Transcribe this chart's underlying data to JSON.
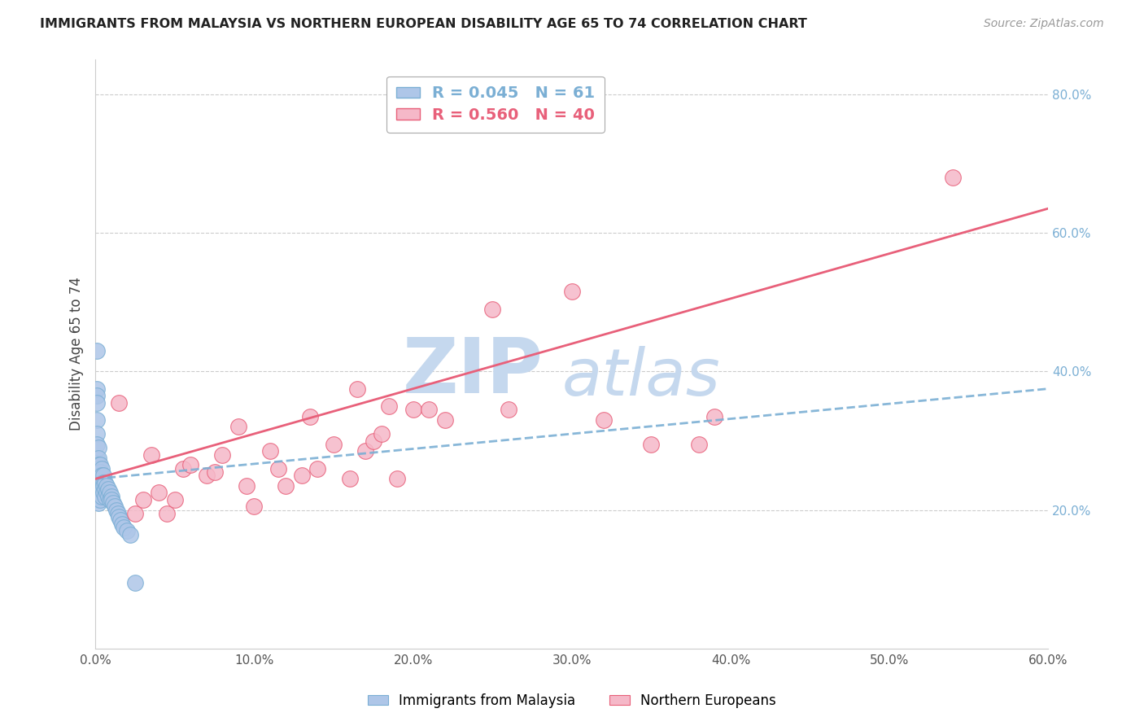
{
  "title": "IMMIGRANTS FROM MALAYSIA VS NORTHERN EUROPEAN DISABILITY AGE 65 TO 74 CORRELATION CHART",
  "source": "Source: ZipAtlas.com",
  "ylabel": "Disability Age 65 to 74",
  "legend_label_1": "Immigrants from Malaysia",
  "legend_label_2": "Northern Europeans",
  "R1": 0.045,
  "N1": 61,
  "R2": 0.56,
  "N2": 40,
  "color1": "#aec6e8",
  "color2": "#f5b8c8",
  "trendline1_color": "#7bafd4",
  "trendline2_color": "#e8607a",
  "xlim": [
    0,
    0.6
  ],
  "ylim": [
    0,
    0.85
  ],
  "x_ticks": [
    0.0,
    0.1,
    0.2,
    0.3,
    0.4,
    0.5,
    0.6
  ],
  "x_tick_labels": [
    "0.0%",
    "10.0%",
    "20.0%",
    "30.0%",
    "40.0%",
    "50.0%",
    "60.0%"
  ],
  "y_ticks_right": [
    0.2,
    0.4,
    0.6,
    0.8
  ],
  "y_tick_labels_right": [
    "20.0%",
    "40.0%",
    "60.0%",
    "80.0%"
  ],
  "background_color": "#ffffff",
  "grid_color": "#cccccc",
  "watermark_zip": "ZIP",
  "watermark_atlas": "atlas",
  "watermark_color": "#c5d8ee",
  "trendline1_x0": 0.0,
  "trendline1_x1": 0.6,
  "trendline1_y0": 0.245,
  "trendline1_y1": 0.375,
  "trendline2_x0": 0.0,
  "trendline2_x1": 0.6,
  "trendline2_y0": 0.245,
  "trendline2_y1": 0.635,
  "scatter1_x": [
    0.001,
    0.001,
    0.001,
    0.001,
    0.001,
    0.001,
    0.001,
    0.001,
    0.001,
    0.001,
    0.002,
    0.002,
    0.002,
    0.002,
    0.002,
    0.002,
    0.002,
    0.002,
    0.002,
    0.002,
    0.002,
    0.002,
    0.003,
    0.003,
    0.003,
    0.003,
    0.003,
    0.003,
    0.003,
    0.003,
    0.004,
    0.004,
    0.004,
    0.004,
    0.004,
    0.005,
    0.005,
    0.005,
    0.005,
    0.006,
    0.006,
    0.006,
    0.007,
    0.007,
    0.008,
    0.008,
    0.009,
    0.009,
    0.01,
    0.01,
    0.011,
    0.012,
    0.013,
    0.014,
    0.015,
    0.016,
    0.017,
    0.018,
    0.02,
    0.022,
    0.025
  ],
  "scatter1_y": [
    0.43,
    0.375,
    0.365,
    0.355,
    0.33,
    0.31,
    0.295,
    0.275,
    0.255,
    0.24,
    0.29,
    0.275,
    0.265,
    0.26,
    0.255,
    0.245,
    0.24,
    0.235,
    0.225,
    0.22,
    0.215,
    0.21,
    0.265,
    0.255,
    0.25,
    0.24,
    0.235,
    0.225,
    0.22,
    0.215,
    0.26,
    0.25,
    0.24,
    0.23,
    0.22,
    0.25,
    0.24,
    0.235,
    0.225,
    0.24,
    0.23,
    0.22,
    0.235,
    0.225,
    0.23,
    0.22,
    0.225,
    0.215,
    0.22,
    0.215,
    0.21,
    0.205,
    0.2,
    0.195,
    0.19,
    0.185,
    0.18,
    0.175,
    0.17,
    0.165,
    0.095
  ],
  "scatter2_x": [
    0.015,
    0.025,
    0.03,
    0.035,
    0.04,
    0.045,
    0.05,
    0.055,
    0.06,
    0.07,
    0.075,
    0.08,
    0.09,
    0.095,
    0.1,
    0.11,
    0.115,
    0.12,
    0.13,
    0.135,
    0.14,
    0.15,
    0.16,
    0.165,
    0.17,
    0.175,
    0.18,
    0.185,
    0.19,
    0.2,
    0.21,
    0.22,
    0.25,
    0.26,
    0.3,
    0.32,
    0.35,
    0.38,
    0.39,
    0.54
  ],
  "scatter2_y": [
    0.355,
    0.195,
    0.215,
    0.28,
    0.225,
    0.195,
    0.215,
    0.26,
    0.265,
    0.25,
    0.255,
    0.28,
    0.32,
    0.235,
    0.205,
    0.285,
    0.26,
    0.235,
    0.25,
    0.335,
    0.26,
    0.295,
    0.245,
    0.375,
    0.285,
    0.3,
    0.31,
    0.35,
    0.245,
    0.345,
    0.345,
    0.33,
    0.49,
    0.345,
    0.515,
    0.33,
    0.295,
    0.295,
    0.335,
    0.68
  ]
}
